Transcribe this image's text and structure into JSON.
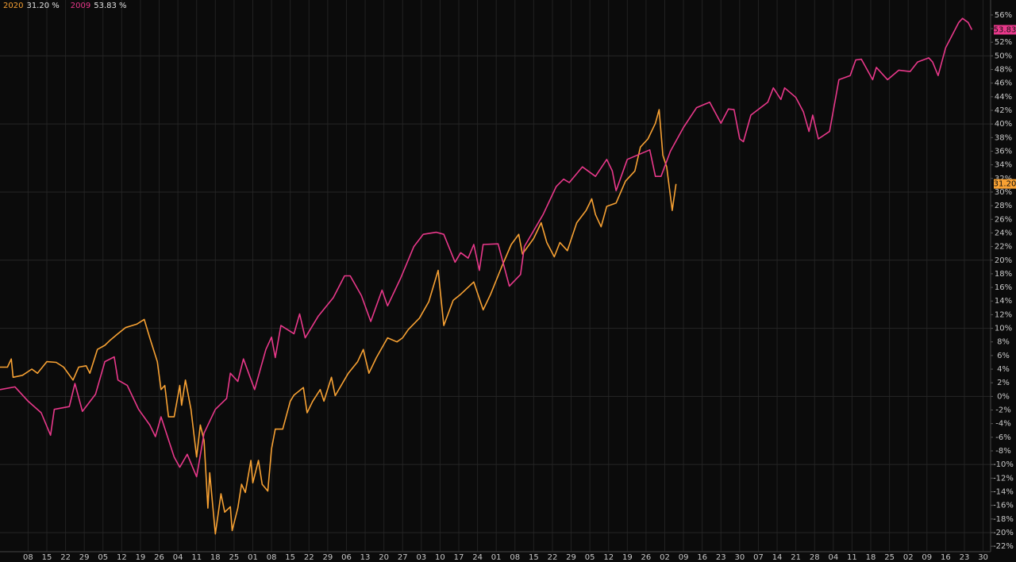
{
  "chart_data": {
    "type": "line",
    "xlim": [
      -1.5,
      51.4
    ],
    "xticks": [
      {
        "value": 0,
        "label": "08"
      },
      {
        "value": 1,
        "label": "15"
      },
      {
        "value": 2,
        "label": "22"
      },
      {
        "value": 3,
        "label": "29"
      },
      {
        "value": 4,
        "label": "05"
      },
      {
        "value": 5,
        "label": "12"
      },
      {
        "value": 6,
        "label": "19"
      },
      {
        "value": 7,
        "label": "26"
      },
      {
        "value": 8,
        "label": "04"
      },
      {
        "value": 9,
        "label": "11"
      },
      {
        "value": 10,
        "label": "18"
      },
      {
        "value": 11,
        "label": "25"
      },
      {
        "value": 12,
        "label": "01"
      },
      {
        "value": 13,
        "label": "08"
      },
      {
        "value": 14,
        "label": "15"
      },
      {
        "value": 15,
        "label": "22"
      },
      {
        "value": 16,
        "label": "29"
      },
      {
        "value": 17,
        "label": "06"
      },
      {
        "value": 18,
        "label": "13"
      },
      {
        "value": 19,
        "label": "20"
      },
      {
        "value": 20,
        "label": "27"
      },
      {
        "value": 21,
        "label": "03"
      },
      {
        "value": 22,
        "label": "10"
      },
      {
        "value": 23,
        "label": "17"
      },
      {
        "value": 24,
        "label": "24"
      },
      {
        "value": 25,
        "label": "01"
      },
      {
        "value": 26,
        "label": "08"
      },
      {
        "value": 27,
        "label": "15"
      },
      {
        "value": 28,
        "label": "22"
      },
      {
        "value": 29,
        "label": "29"
      },
      {
        "value": 30,
        "label": "05"
      },
      {
        "value": 31,
        "label": "12"
      },
      {
        "value": 32,
        "label": "19"
      },
      {
        "value": 33,
        "label": "26"
      },
      {
        "value": 34,
        "label": "02"
      },
      {
        "value": 35,
        "label": "09"
      },
      {
        "value": 36,
        "label": "16"
      },
      {
        "value": 37,
        "label": "23"
      },
      {
        "value": 38,
        "label": "30"
      },
      {
        "value": 39,
        "label": "07"
      },
      {
        "value": 40,
        "label": "14"
      },
      {
        "value": 41,
        "label": "21"
      },
      {
        "value": 42,
        "label": "28"
      },
      {
        "value": 43,
        "label": "04"
      },
      {
        "value": 44,
        "label": "11"
      },
      {
        "value": 45,
        "label": "18"
      },
      {
        "value": 46,
        "label": "25"
      },
      {
        "value": 47,
        "label": "02"
      },
      {
        "value": 48,
        "label": "09"
      },
      {
        "value": 49,
        "label": "16"
      },
      {
        "value": 50,
        "label": "23"
      },
      {
        "value": 51,
        "label": "30"
      }
    ],
    "ylim": [
      -22.8,
      58.2
    ],
    "yticks": [
      {
        "value": 56,
        "label": "56%"
      },
      {
        "value": 54,
        "label": "54%"
      },
      {
        "value": 52,
        "label": "52%"
      },
      {
        "value": 50,
        "label": "50%"
      },
      {
        "value": 48,
        "label": "48%"
      },
      {
        "value": 46,
        "label": "46%"
      },
      {
        "value": 44,
        "label": "44%"
      },
      {
        "value": 42,
        "label": "42%"
      },
      {
        "value": 40,
        "label": "40%"
      },
      {
        "value": 38,
        "label": "38%"
      },
      {
        "value": 36,
        "label": "36%"
      },
      {
        "value": 34,
        "label": "34%"
      },
      {
        "value": 32,
        "label": "32%"
      },
      {
        "value": 30,
        "label": "30%"
      },
      {
        "value": 28,
        "label": "28%"
      },
      {
        "value": 26,
        "label": "26%"
      },
      {
        "value": 24,
        "label": "24%"
      },
      {
        "value": 22,
        "label": "22%"
      },
      {
        "value": 20,
        "label": "20%"
      },
      {
        "value": 18,
        "label": "18%"
      },
      {
        "value": 16,
        "label": "16%"
      },
      {
        "value": 14,
        "label": "14%"
      },
      {
        "value": 12,
        "label": "12%"
      },
      {
        "value": 10,
        "label": "10%"
      },
      {
        "value": 8,
        "label": "8%"
      },
      {
        "value": 6,
        "label": "6%"
      },
      {
        "value": 4,
        "label": "4%"
      },
      {
        "value": 2,
        "label": "2%"
      },
      {
        "value": 0,
        "label": "0%"
      },
      {
        "value": -2,
        "label": "-2%"
      },
      {
        "value": -4,
        "label": "-4%"
      },
      {
        "value": -6,
        "label": "-6%"
      },
      {
        "value": -8,
        "label": "-8%"
      },
      {
        "value": -10,
        "label": "-10%"
      },
      {
        "value": -12,
        "label": "-12%"
      },
      {
        "value": -14,
        "label": "-14%"
      },
      {
        "value": -16,
        "label": "-16%"
      },
      {
        "value": -18,
        "label": "-18%"
      },
      {
        "value": -20,
        "label": "-20%"
      },
      {
        "value": -22,
        "label": "-22%"
      }
    ],
    "grid": true,
    "series": [
      {
        "name": "2020",
        "color": "#f7a133",
        "legend_value": "31.20 %",
        "axis_label": "31.20",
        "x": [
          -1.5,
          -1.1,
          -0.9,
          -0.8,
          -0.3,
          0.2,
          0.5,
          1.0,
          1.5,
          1.9,
          2.4,
          2.7,
          3.1,
          3.3,
          3.7,
          4.1,
          4.4,
          4.8,
          5.2,
          5.8,
          6.2,
          6.5,
          6.9,
          7.1,
          7.3,
          7.5,
          7.8,
          8.1,
          8.2,
          8.4,
          8.7,
          9.0,
          9.2,
          9.4,
          9.6,
          9.7,
          10.0,
          10.3,
          10.5,
          10.8,
          10.9,
          11.2,
          11.4,
          11.6,
          11.9,
          12.0,
          12.3,
          12.5,
          12.8,
          13.0,
          13.2,
          13.6,
          14.0,
          14.2,
          14.7,
          14.9,
          15.2,
          15.6,
          15.8,
          16.2,
          16.4,
          17.1,
          17.6,
          17.9,
          18.2,
          18.6,
          19.2,
          19.7,
          20.0,
          20.3,
          20.9,
          21.4,
          21.9,
          22.2,
          22.7,
          23.1,
          23.8,
          24.3,
          24.7,
          25.3,
          25.8,
          26.2,
          26.4,
          27.0,
          27.4,
          27.7,
          28.1,
          28.4,
          28.8,
          29.3,
          29.8,
          30.1,
          30.3,
          30.6,
          30.9,
          31.4,
          31.9,
          32.4,
          32.7,
          33.1,
          33.5,
          33.7,
          33.9,
          34.1,
          34.4,
          34.6
        ],
        "values": [
          4.3,
          4.3,
          5.5,
          2.8,
          3.1,
          4.0,
          3.4,
          5.1,
          5.0,
          4.3,
          2.4,
          4.3,
          4.5,
          3.4,
          6.9,
          7.5,
          8.3,
          9.2,
          10.1,
          10.6,
          11.3,
          8.6,
          5.1,
          1.0,
          1.6,
          -3.0,
          -3.0,
          1.6,
          -1.3,
          2.4,
          -1.9,
          -8.9,
          -4.2,
          -6.5,
          -16.4,
          -11.2,
          -20.2,
          -14.3,
          -17.0,
          -16.2,
          -19.7,
          -16.4,
          -12.9,
          -14.1,
          -9.4,
          -12.7,
          -9.4,
          -12.9,
          -13.9,
          -7.7,
          -4.8,
          -4.8,
          -0.7,
          0.2,
          1.3,
          -2.4,
          -0.7,
          1.0,
          -0.7,
          2.8,
          0.1,
          3.4,
          5.1,
          6.9,
          3.4,
          5.7,
          8.6,
          8.0,
          8.6,
          9.8,
          11.5,
          13.9,
          18.5,
          10.4,
          14.1,
          15.0,
          16.8,
          12.7,
          15.0,
          19.1,
          22.3,
          23.8,
          20.9,
          23.2,
          25.5,
          22.6,
          20.5,
          22.6,
          21.4,
          25.5,
          27.3,
          29.0,
          26.7,
          24.9,
          27.9,
          28.4,
          31.6,
          33.1,
          36.6,
          37.8,
          40.1,
          42.1,
          35.4,
          33.7,
          27.3,
          31.2
        ]
      },
      {
        "name": "2009",
        "color": "#e8388a",
        "legend_value": "53.83 %",
        "axis_label": "53.83",
        "x": [
          -1.5,
          -0.7,
          0.0,
          0.7,
          1.2,
          1.4,
          2.2,
          2.5,
          2.9,
          3.6,
          4.1,
          4.6,
          4.8,
          5.3,
          5.9,
          6.5,
          6.8,
          7.1,
          7.8,
          8.1,
          8.5,
          9.0,
          9.4,
          10.0,
          10.6,
          10.8,
          11.2,
          11.5,
          12.1,
          12.7,
          13.0,
          13.2,
          13.5,
          14.2,
          14.5,
          14.8,
          15.5,
          16.3,
          16.9,
          17.2,
          17.8,
          18.3,
          18.9,
          19.2,
          19.9,
          20.6,
          21.1,
          21.8,
          22.2,
          22.8,
          23.1,
          23.5,
          23.8,
          24.1,
          24.3,
          25.1,
          25.7,
          26.3,
          26.5,
          27.5,
          28.2,
          28.6,
          28.9,
          29.6,
          30.3,
          30.9,
          31.2,
          31.4,
          32.0,
          33.2,
          33.5,
          33.8,
          34.3,
          35.0,
          35.7,
          36.4,
          37.0,
          37.4,
          37.7,
          38.0,
          38.2,
          38.6,
          39.5,
          39.8,
          40.2,
          40.4,
          41.0,
          41.4,
          41.7,
          41.9,
          42.2,
          42.8,
          43.3,
          43.9,
          44.2,
          44.5,
          45.1,
          45.3,
          45.9,
          46.5,
          47.1,
          47.5,
          48.1,
          48.3,
          48.6,
          49.0,
          49.7,
          49.9,
          50.2,
          50.4
        ],
        "values": [
          1.0,
          1.4,
          -0.7,
          -2.4,
          -5.7,
          -1.9,
          -1.5,
          1.9,
          -2.2,
          0.3,
          5.1,
          5.8,
          2.4,
          1.6,
          -1.9,
          -4.2,
          -5.9,
          -3.0,
          -8.9,
          -10.4,
          -8.5,
          -11.8,
          -5.4,
          -1.9,
          -0.3,
          3.4,
          2.2,
          5.5,
          1.0,
          6.9,
          8.7,
          5.7,
          10.4,
          9.2,
          12.1,
          8.6,
          11.8,
          14.5,
          17.7,
          17.7,
          14.8,
          11.0,
          15.6,
          13.3,
          17.4,
          22.0,
          23.8,
          24.1,
          23.8,
          19.7,
          21.1,
          20.3,
          22.3,
          18.5,
          22.3,
          22.4,
          16.2,
          17.9,
          22.0,
          26.7,
          30.8,
          31.9,
          31.4,
          33.7,
          32.3,
          34.8,
          33.1,
          30.2,
          34.8,
          36.2,
          32.3,
          32.3,
          36.0,
          39.5,
          42.4,
          43.2,
          40.1,
          42.2,
          42.1,
          37.8,
          37.4,
          41.3,
          43.2,
          45.3,
          43.6,
          45.3,
          43.9,
          41.8,
          38.9,
          41.3,
          37.8,
          38.9,
          46.5,
          47.1,
          49.4,
          49.5,
          46.5,
          48.3,
          46.5,
          47.9,
          47.7,
          49.1,
          49.7,
          49.1,
          47.1,
          51.2,
          54.9,
          55.5,
          54.9,
          53.83
        ]
      }
    ]
  }
}
